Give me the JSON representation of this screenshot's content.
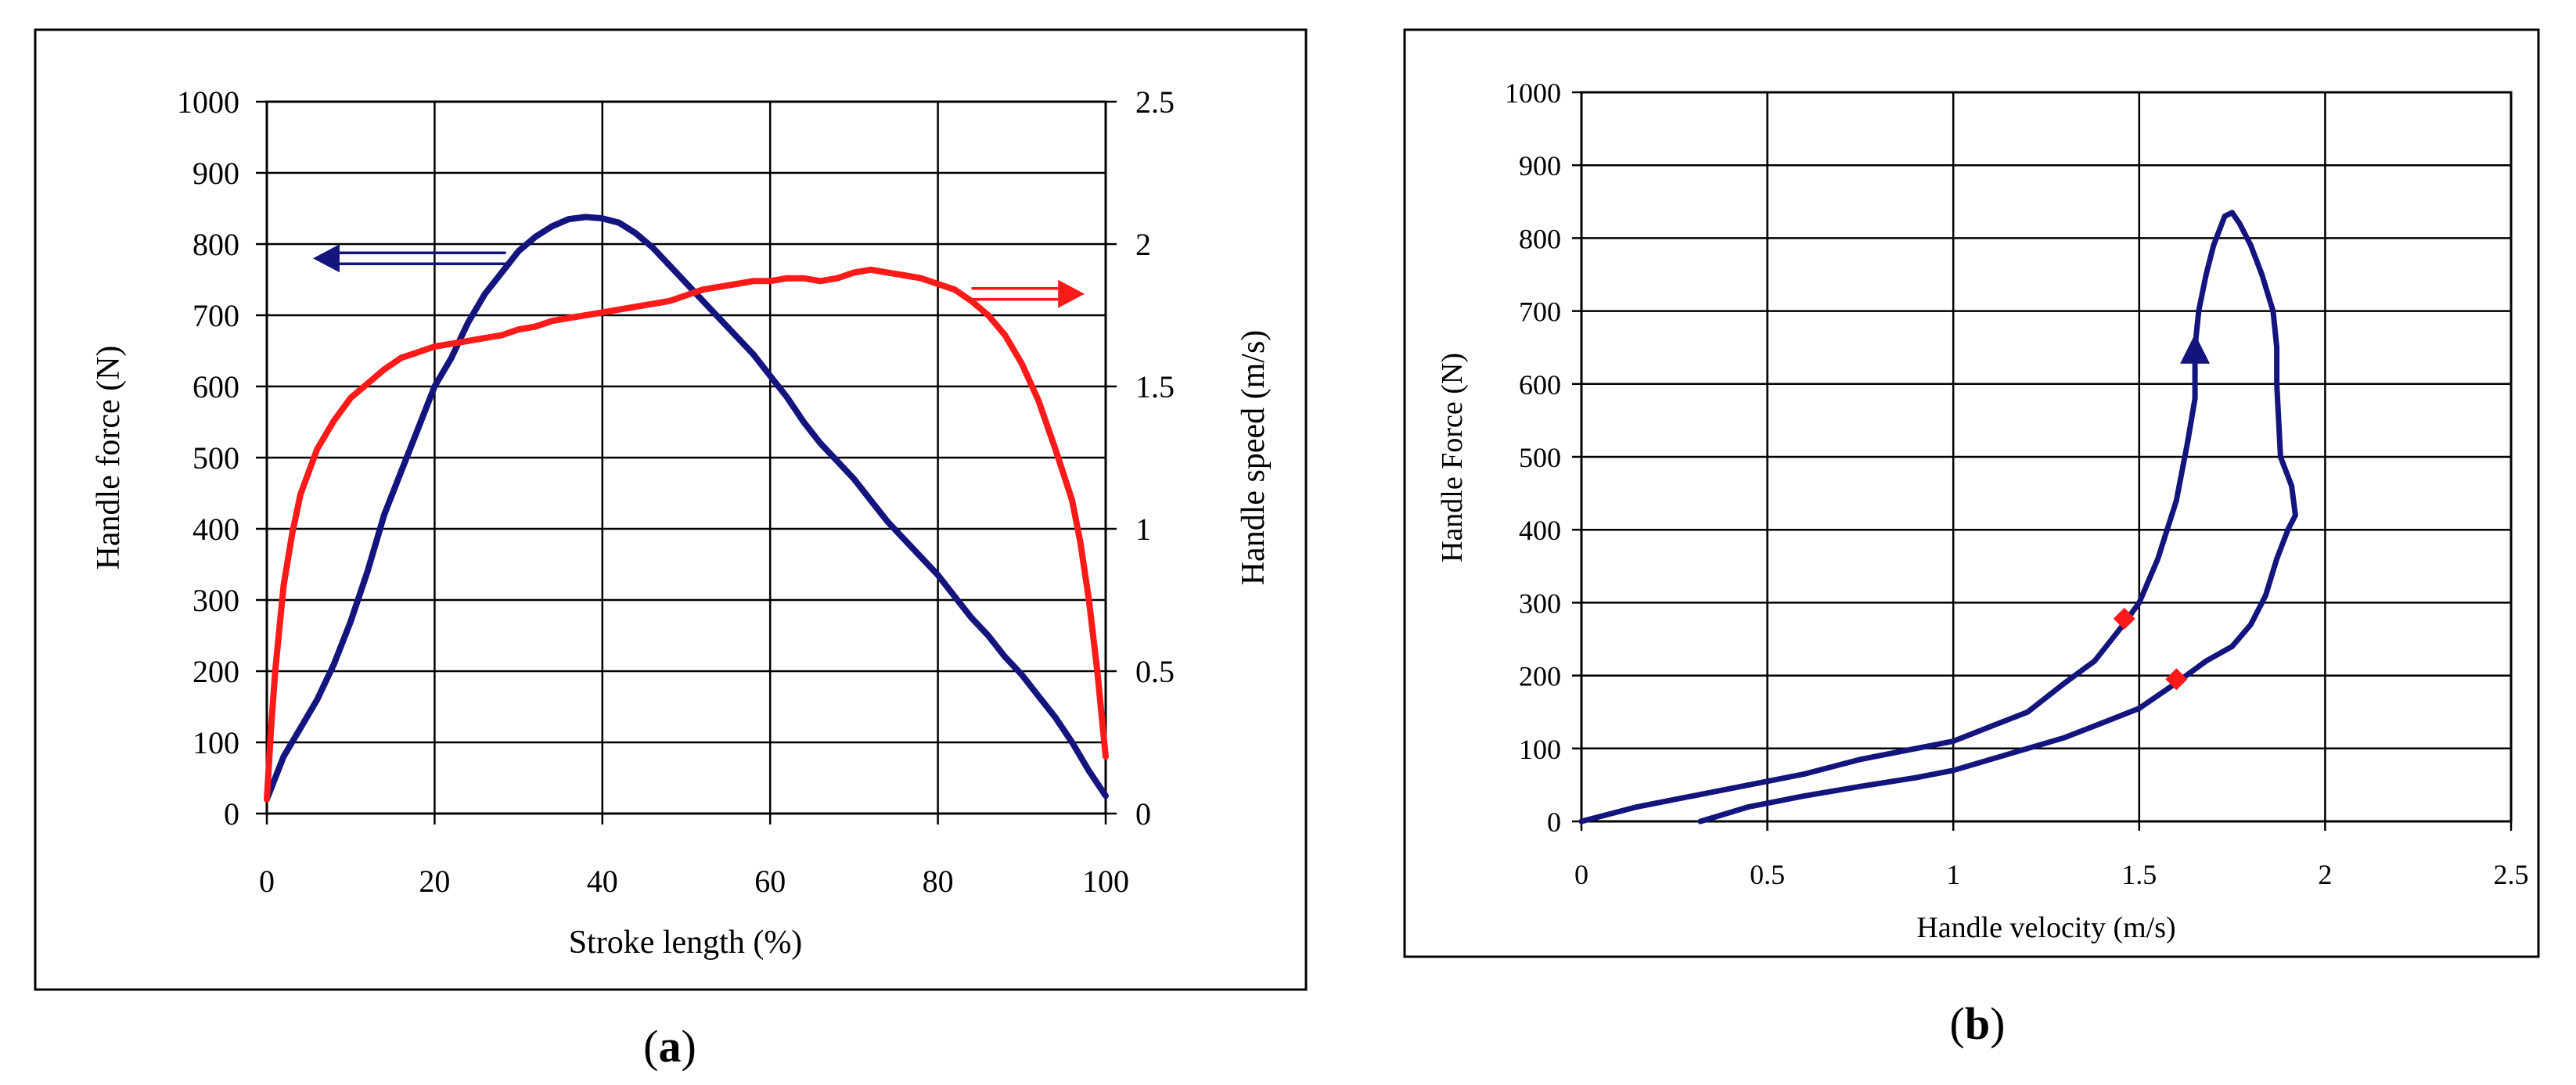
{
  "chart_data": [
    {
      "panel_label": "(a)",
      "panel_letter": "a",
      "type": "line",
      "title": "",
      "xlabel": "Stroke length (%)",
      "ylabel": "Handle force (N)",
      "y2label": "Handle speed (m/s)",
      "xlim": [
        0,
        100
      ],
      "ylim": [
        0,
        1000
      ],
      "y2lim": [
        0,
        2.5
      ],
      "grid": true,
      "xticks": [
        "0",
        "20",
        "40",
        "60",
        "80",
        "100"
      ],
      "yticks": [
        "0",
        "100",
        "200",
        "300",
        "400",
        "500",
        "600",
        "700",
        "800",
        "900",
        "1000"
      ],
      "y2ticks": [
        "0",
        "0.5",
        "1",
        "1.5",
        "2",
        "2.5"
      ],
      "series": [
        {
          "name": "Handle force",
          "axis": "left",
          "color": "#14147e",
          "x": [
            0,
            2,
            4,
            6,
            8,
            10,
            12,
            14,
            16,
            18,
            20,
            22,
            24,
            26,
            28,
            30,
            32,
            34,
            36,
            38,
            40,
            42,
            44,
            46,
            48,
            50,
            52,
            54,
            56,
            58,
            60,
            62,
            64,
            66,
            68,
            70,
            72,
            74,
            76,
            78,
            80,
            82,
            84,
            86,
            88,
            90,
            92,
            94,
            96,
            98,
            100
          ],
          "y": [
            20,
            80,
            120,
            160,
            210,
            270,
            340,
            420,
            480,
            540,
            600,
            640,
            690,
            730,
            760,
            790,
            810,
            825,
            835,
            838,
            836,
            830,
            815,
            795,
            770,
            745,
            720,
            695,
            670,
            645,
            615,
            585,
            550,
            520,
            495,
            470,
            440,
            410,
            385,
            360,
            335,
            305,
            275,
            250,
            220,
            195,
            165,
            135,
            100,
            60,
            25
          ]
        },
        {
          "name": "Handle speed",
          "axis": "right",
          "color": "#ff1a1a",
          "x": [
            0,
            0.5,
            1,
            2,
            3,
            4,
            6,
            8,
            10,
            12,
            14,
            16,
            18,
            20,
            22,
            24,
            26,
            28,
            30,
            32,
            34,
            36,
            38,
            40,
            42,
            44,
            46,
            48,
            50,
            52,
            54,
            56,
            58,
            60,
            62,
            64,
            66,
            68,
            70,
            72,
            74,
            76,
            78,
            80,
            82,
            84,
            86,
            88,
            90,
            92,
            94,
            96,
            97,
            98,
            99,
            99.5,
            100
          ],
          "y": [
            0.05,
            0.3,
            0.5,
            0.8,
            0.98,
            1.12,
            1.28,
            1.38,
            1.46,
            1.51,
            1.56,
            1.6,
            1.62,
            1.64,
            1.65,
            1.66,
            1.67,
            1.68,
            1.7,
            1.71,
            1.73,
            1.74,
            1.75,
            1.76,
            1.77,
            1.78,
            1.79,
            1.8,
            1.82,
            1.84,
            1.85,
            1.86,
            1.87,
            1.87,
            1.88,
            1.88,
            1.87,
            1.88,
            1.9,
            1.91,
            1.9,
            1.89,
            1.88,
            1.86,
            1.84,
            1.8,
            1.75,
            1.68,
            1.58,
            1.45,
            1.28,
            1.1,
            0.95,
            0.75,
            0.5,
            0.35,
            0.2
          ]
        }
      ],
      "annotations": [
        {
          "type": "arrow",
          "color": "#14147e",
          "from": [
            28.5,
            780
          ],
          "to": [
            5.5,
            780
          ],
          "axis": "left",
          "meaning": "force curve uses left axis"
        },
        {
          "type": "arrow",
          "color": "#ff1a1a",
          "from": [
            84,
            730
          ],
          "to": [
            97.5,
            730
          ],
          "axis": "left",
          "meaning": "speed curve uses right axis"
        }
      ]
    },
    {
      "panel_label": "(b)",
      "panel_letter": "b",
      "type": "line",
      "title": "",
      "xlabel": "Handle velocity (m/s)",
      "ylabel": "Handle Force (N)",
      "xlim": [
        0,
        2.5
      ],
      "ylim": [
        0,
        1000
      ],
      "grid": true,
      "xticks": [
        "0",
        "0.5",
        "1",
        "1.5",
        "2",
        "2.5"
      ],
      "yticks": [
        "0",
        "100",
        "200",
        "300",
        "400",
        "500",
        "600",
        "700",
        "800",
        "900",
        "1000"
      ],
      "series": [
        {
          "name": "Force-velocity loop",
          "color": "#14147e",
          "x": [
            0.32,
            0.45,
            0.6,
            0.75,
            0.9,
            1.0,
            1.1,
            1.2,
            1.3,
            1.4,
            1.5,
            1.6,
            1.68,
            1.75,
            1.8,
            1.84,
            1.87,
            1.9,
            1.92,
            1.91,
            1.88,
            1.87,
            1.87,
            1.86,
            1.83,
            1.8,
            1.77,
            1.75,
            1.73,
            1.7,
            1.68,
            1.66,
            1.65,
            1.65,
            1.63,
            1.6,
            1.55,
            1.5,
            1.45,
            1.38,
            1.3,
            1.2,
            1.1,
            1.0,
            0.9,
            0.75,
            0.6,
            0.45,
            0.3,
            0.15,
            0.0
          ],
          "y": [
            0,
            20,
            35,
            48,
            60,
            70,
            85,
            100,
            115,
            135,
            155,
            190,
            220,
            240,
            270,
            310,
            360,
            400,
            420,
            460,
            500,
            600,
            650,
            700,
            750,
            790,
            820,
            835,
            830,
            790,
            750,
            700,
            650,
            580,
            520,
            440,
            360,
            300,
            265,
            220,
            190,
            150,
            130,
            110,
            100,
            85,
            65,
            50,
            35,
            20,
            0
          ]
        }
      ],
      "markers": [
        {
          "type": "diamond",
          "color": "#ff1a1a",
          "x": 1.46,
          "y": 278
        },
        {
          "type": "diamond",
          "color": "#ff1a1a",
          "x": 1.6,
          "y": 195
        },
        {
          "type": "triangle",
          "color": "#14147e",
          "x": 1.65,
          "y": 645
        }
      ]
    }
  ]
}
